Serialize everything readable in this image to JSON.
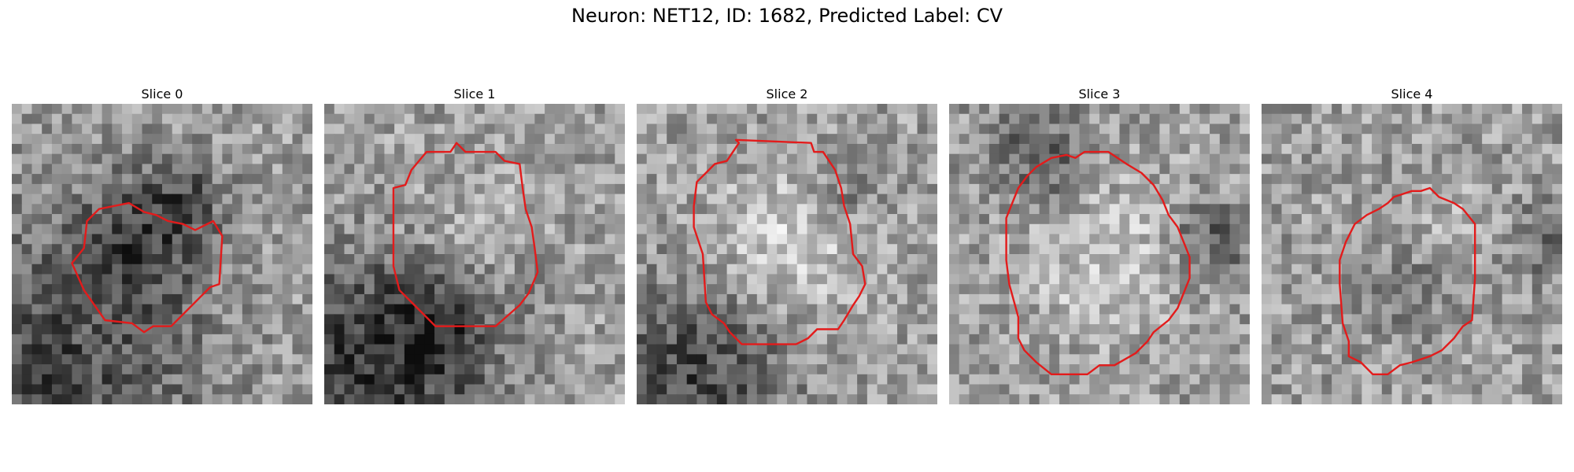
{
  "title": "Neuron: NET12, ID: 1682, Predicted Label: CV",
  "colors": {
    "contour": "#e31b1b",
    "background": "#ffffff"
  },
  "panels": [
    {
      "label": "Slice 0",
      "seed": 11,
      "dark": [
        [
          0.45,
          0.45,
          0.22,
          -0.3
        ],
        [
          0.1,
          0.92,
          0.5,
          -0.35
        ],
        [
          0.58,
          0.28,
          0.12,
          -0.18
        ]
      ],
      "contour": [
        [
          0.29,
          0.35
        ],
        [
          0.39,
          0.33
        ],
        [
          0.44,
          0.36
        ],
        [
          0.48,
          0.37
        ],
        [
          0.52,
          0.39
        ],
        [
          0.57,
          0.4
        ],
        [
          0.61,
          0.42
        ],
        [
          0.67,
          0.39
        ],
        [
          0.7,
          0.44
        ],
        [
          0.69,
          0.6
        ],
        [
          0.66,
          0.61
        ],
        [
          0.61,
          0.66
        ],
        [
          0.53,
          0.74
        ],
        [
          0.47,
          0.74
        ],
        [
          0.44,
          0.76
        ],
        [
          0.4,
          0.73
        ],
        [
          0.31,
          0.72
        ],
        [
          0.24,
          0.62
        ],
        [
          0.2,
          0.53
        ],
        [
          0.24,
          0.48
        ],
        [
          0.25,
          0.39
        ]
      ]
    },
    {
      "label": "Slice 1",
      "seed": 23,
      "dark": [
        [
          0.48,
          0.5,
          0.24,
          0.15
        ],
        [
          0.15,
          0.88,
          0.38,
          -0.4
        ],
        [
          0.4,
          0.7,
          0.2,
          -0.3
        ],
        [
          0.7,
          0.6,
          0.1,
          -0.1
        ]
      ],
      "contour": [
        [
          0.29,
          0.22
        ],
        [
          0.34,
          0.16
        ],
        [
          0.42,
          0.16
        ],
        [
          0.44,
          0.13
        ],
        [
          0.47,
          0.16
        ],
        [
          0.57,
          0.16
        ],
        [
          0.6,
          0.19
        ],
        [
          0.65,
          0.2
        ],
        [
          0.66,
          0.28
        ],
        [
          0.67,
          0.35
        ],
        [
          0.69,
          0.41
        ],
        [
          0.7,
          0.48
        ],
        [
          0.71,
          0.56
        ],
        [
          0.68,
          0.63
        ],
        [
          0.65,
          0.67
        ],
        [
          0.57,
          0.74
        ],
        [
          0.37,
          0.74
        ],
        [
          0.33,
          0.7
        ],
        [
          0.29,
          0.66
        ],
        [
          0.25,
          0.62
        ],
        [
          0.23,
          0.54
        ],
        [
          0.23,
          0.45
        ],
        [
          0.23,
          0.28
        ],
        [
          0.27,
          0.27
        ]
      ]
    },
    {
      "label": "Slice 2",
      "seed": 37,
      "dark": [
        [
          0.5,
          0.48,
          0.25,
          0.2
        ],
        [
          0.2,
          0.9,
          0.3,
          -0.35
        ],
        [
          0.7,
          0.3,
          0.12,
          -0.15
        ]
      ],
      "contour": [
        [
          0.3,
          0.19
        ],
        [
          0.34,
          0.13
        ],
        [
          0.33,
          0.12
        ],
        [
          0.58,
          0.13
        ],
        [
          0.59,
          0.16
        ],
        [
          0.62,
          0.16
        ],
        [
          0.64,
          0.19
        ],
        [
          0.66,
          0.22
        ],
        [
          0.68,
          0.28
        ],
        [
          0.69,
          0.34
        ],
        [
          0.71,
          0.4
        ],
        [
          0.72,
          0.5
        ],
        [
          0.75,
          0.54
        ],
        [
          0.76,
          0.6
        ],
        [
          0.74,
          0.64
        ],
        [
          0.72,
          0.67
        ],
        [
          0.69,
          0.72
        ],
        [
          0.67,
          0.75
        ],
        [
          0.6,
          0.75
        ],
        [
          0.57,
          0.78
        ],
        [
          0.53,
          0.8
        ],
        [
          0.47,
          0.8
        ],
        [
          0.35,
          0.8
        ],
        [
          0.31,
          0.76
        ],
        [
          0.29,
          0.73
        ],
        [
          0.25,
          0.7
        ],
        [
          0.23,
          0.66
        ],
        [
          0.22,
          0.5
        ],
        [
          0.19,
          0.41
        ],
        [
          0.19,
          0.34
        ],
        [
          0.2,
          0.26
        ],
        [
          0.23,
          0.23
        ],
        [
          0.26,
          0.2
        ]
      ]
    },
    {
      "label": "Slice 3",
      "seed": 53,
      "dark": [
        [
          0.5,
          0.5,
          0.28,
          0.15
        ],
        [
          0.3,
          0.18,
          0.18,
          -0.25
        ],
        [
          0.88,
          0.45,
          0.12,
          -0.28
        ]
      ],
      "contour": [
        [
          0.34,
          0.18
        ],
        [
          0.39,
          0.17
        ],
        [
          0.42,
          0.18
        ],
        [
          0.45,
          0.16
        ],
        [
          0.53,
          0.16
        ],
        [
          0.59,
          0.2
        ],
        [
          0.64,
          0.23
        ],
        [
          0.68,
          0.27
        ],
        [
          0.71,
          0.32
        ],
        [
          0.73,
          0.37
        ],
        [
          0.76,
          0.41
        ],
        [
          0.78,
          0.46
        ],
        [
          0.8,
          0.51
        ],
        [
          0.8,
          0.58
        ],
        [
          0.78,
          0.63
        ],
        [
          0.76,
          0.68
        ],
        [
          0.73,
          0.72
        ],
        [
          0.68,
          0.76
        ],
        [
          0.66,
          0.79
        ],
        [
          0.62,
          0.83
        ],
        [
          0.55,
          0.87
        ],
        [
          0.5,
          0.87
        ],
        [
          0.46,
          0.9
        ],
        [
          0.34,
          0.9
        ],
        [
          0.29,
          0.86
        ],
        [
          0.25,
          0.82
        ],
        [
          0.23,
          0.78
        ],
        [
          0.23,
          0.71
        ],
        [
          0.2,
          0.6
        ],
        [
          0.19,
          0.52
        ],
        [
          0.19,
          0.38
        ],
        [
          0.23,
          0.28
        ],
        [
          0.26,
          0.24
        ],
        [
          0.29,
          0.21
        ]
      ]
    },
    {
      "label": "Slice 4",
      "seed": 71,
      "dark": [
        [
          0.5,
          0.6,
          0.18,
          -0.12
        ],
        [
          0.95,
          0.45,
          0.12,
          -0.22
        ],
        [
          0.6,
          0.4,
          0.15,
          0.1
        ]
      ],
      "contour": [
        [
          0.35,
          0.37
        ],
        [
          0.39,
          0.35
        ],
        [
          0.42,
          0.33
        ],
        [
          0.44,
          0.31
        ],
        [
          0.47,
          0.3
        ],
        [
          0.5,
          0.29
        ],
        [
          0.53,
          0.29
        ],
        [
          0.56,
          0.28
        ],
        [
          0.59,
          0.31
        ],
        [
          0.64,
          0.33
        ],
        [
          0.67,
          0.35
        ],
        [
          0.71,
          0.4
        ],
        [
          0.71,
          0.49
        ],
        [
          0.71,
          0.58
        ],
        [
          0.7,
          0.72
        ],
        [
          0.67,
          0.74
        ],
        [
          0.64,
          0.78
        ],
        [
          0.6,
          0.82
        ],
        [
          0.56,
          0.84
        ],
        [
          0.53,
          0.85
        ],
        [
          0.5,
          0.86
        ],
        [
          0.46,
          0.87
        ],
        [
          0.42,
          0.9
        ],
        [
          0.37,
          0.9
        ],
        [
          0.33,
          0.86
        ],
        [
          0.29,
          0.84
        ],
        [
          0.29,
          0.79
        ],
        [
          0.27,
          0.73
        ],
        [
          0.26,
          0.6
        ],
        [
          0.26,
          0.52
        ],
        [
          0.28,
          0.46
        ],
        [
          0.31,
          0.4
        ]
      ]
    }
  ]
}
